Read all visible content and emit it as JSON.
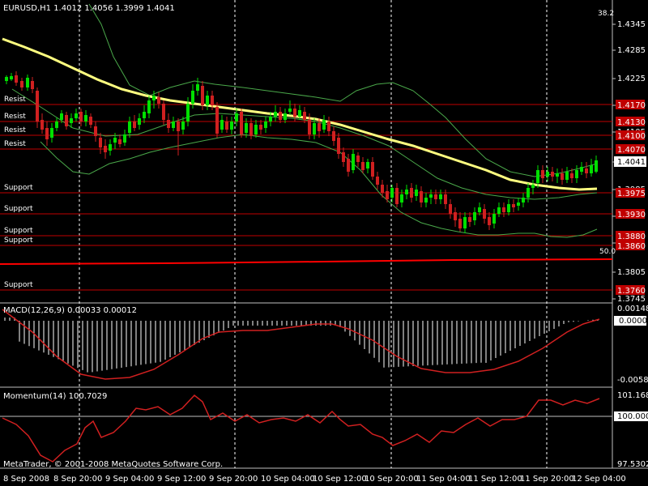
{
  "header": {
    "symbol_line": "EURUSD,H1  1.4012 1.4056 1.3999 1.4041",
    "corner_value": "38.2"
  },
  "main_panel": {
    "price_ticks": [
      "1.4345",
      "1.4285",
      "1.4225",
      "1.4165",
      "1.4105",
      "1.4045",
      "1.3985",
      "1.3925",
      "1.3865",
      "1.3805",
      "1.3745"
    ],
    "current_price": "1.4041",
    "level_tags": [
      "1.4170",
      "1.4130",
      "1.4100",
      "1.4070",
      "1.3975",
      "1.3930",
      "1.3880",
      "1.3860",
      "1.3760"
    ],
    "level_labels": [
      "Resist",
      "Resist",
      "Resist",
      "Resist",
      "Support",
      "Support",
      "Support",
      "Support",
      "Support"
    ],
    "fib_label": "50.0"
  },
  "macd_panel": {
    "title": "MACD(12,26,9) 0.00033 0.00012",
    "ticks": [
      "0.00148",
      "0.0000",
      "-0.0058"
    ]
  },
  "momentum_panel": {
    "title": "Momentum(14) 100.7029",
    "ticks": [
      "101.1686",
      "100.0000",
      "97.5302"
    ]
  },
  "footer": {
    "copyright": "MetaTrader, © 2001-2008 MetaQuotes Software Corp.",
    "time_labels": [
      "8 Sep 2008",
      "8 Sep 20:00",
      "9 Sep 04:00",
      "9 Sep 12:00",
      "9 Sep 20:00",
      "10 Sep 04:00",
      "10 Sep 12:00",
      "10 Sep 20:00",
      "11 Sep 04:00",
      "11 Sep 12:00",
      "11 Sep 20:00",
      "12 Sep 04:00"
    ]
  },
  "colors": {
    "background": "#000000",
    "bull_candle": "#00e000",
    "bear_candle": "#d02020",
    "moving_average": "#ffff80",
    "bands": "#4aa84a",
    "level_line": "#c00000",
    "macd_signal": "#d02020",
    "momentum_line": "#d02020",
    "separator": "#c0c0c0",
    "text": "#ffffff"
  }
}
